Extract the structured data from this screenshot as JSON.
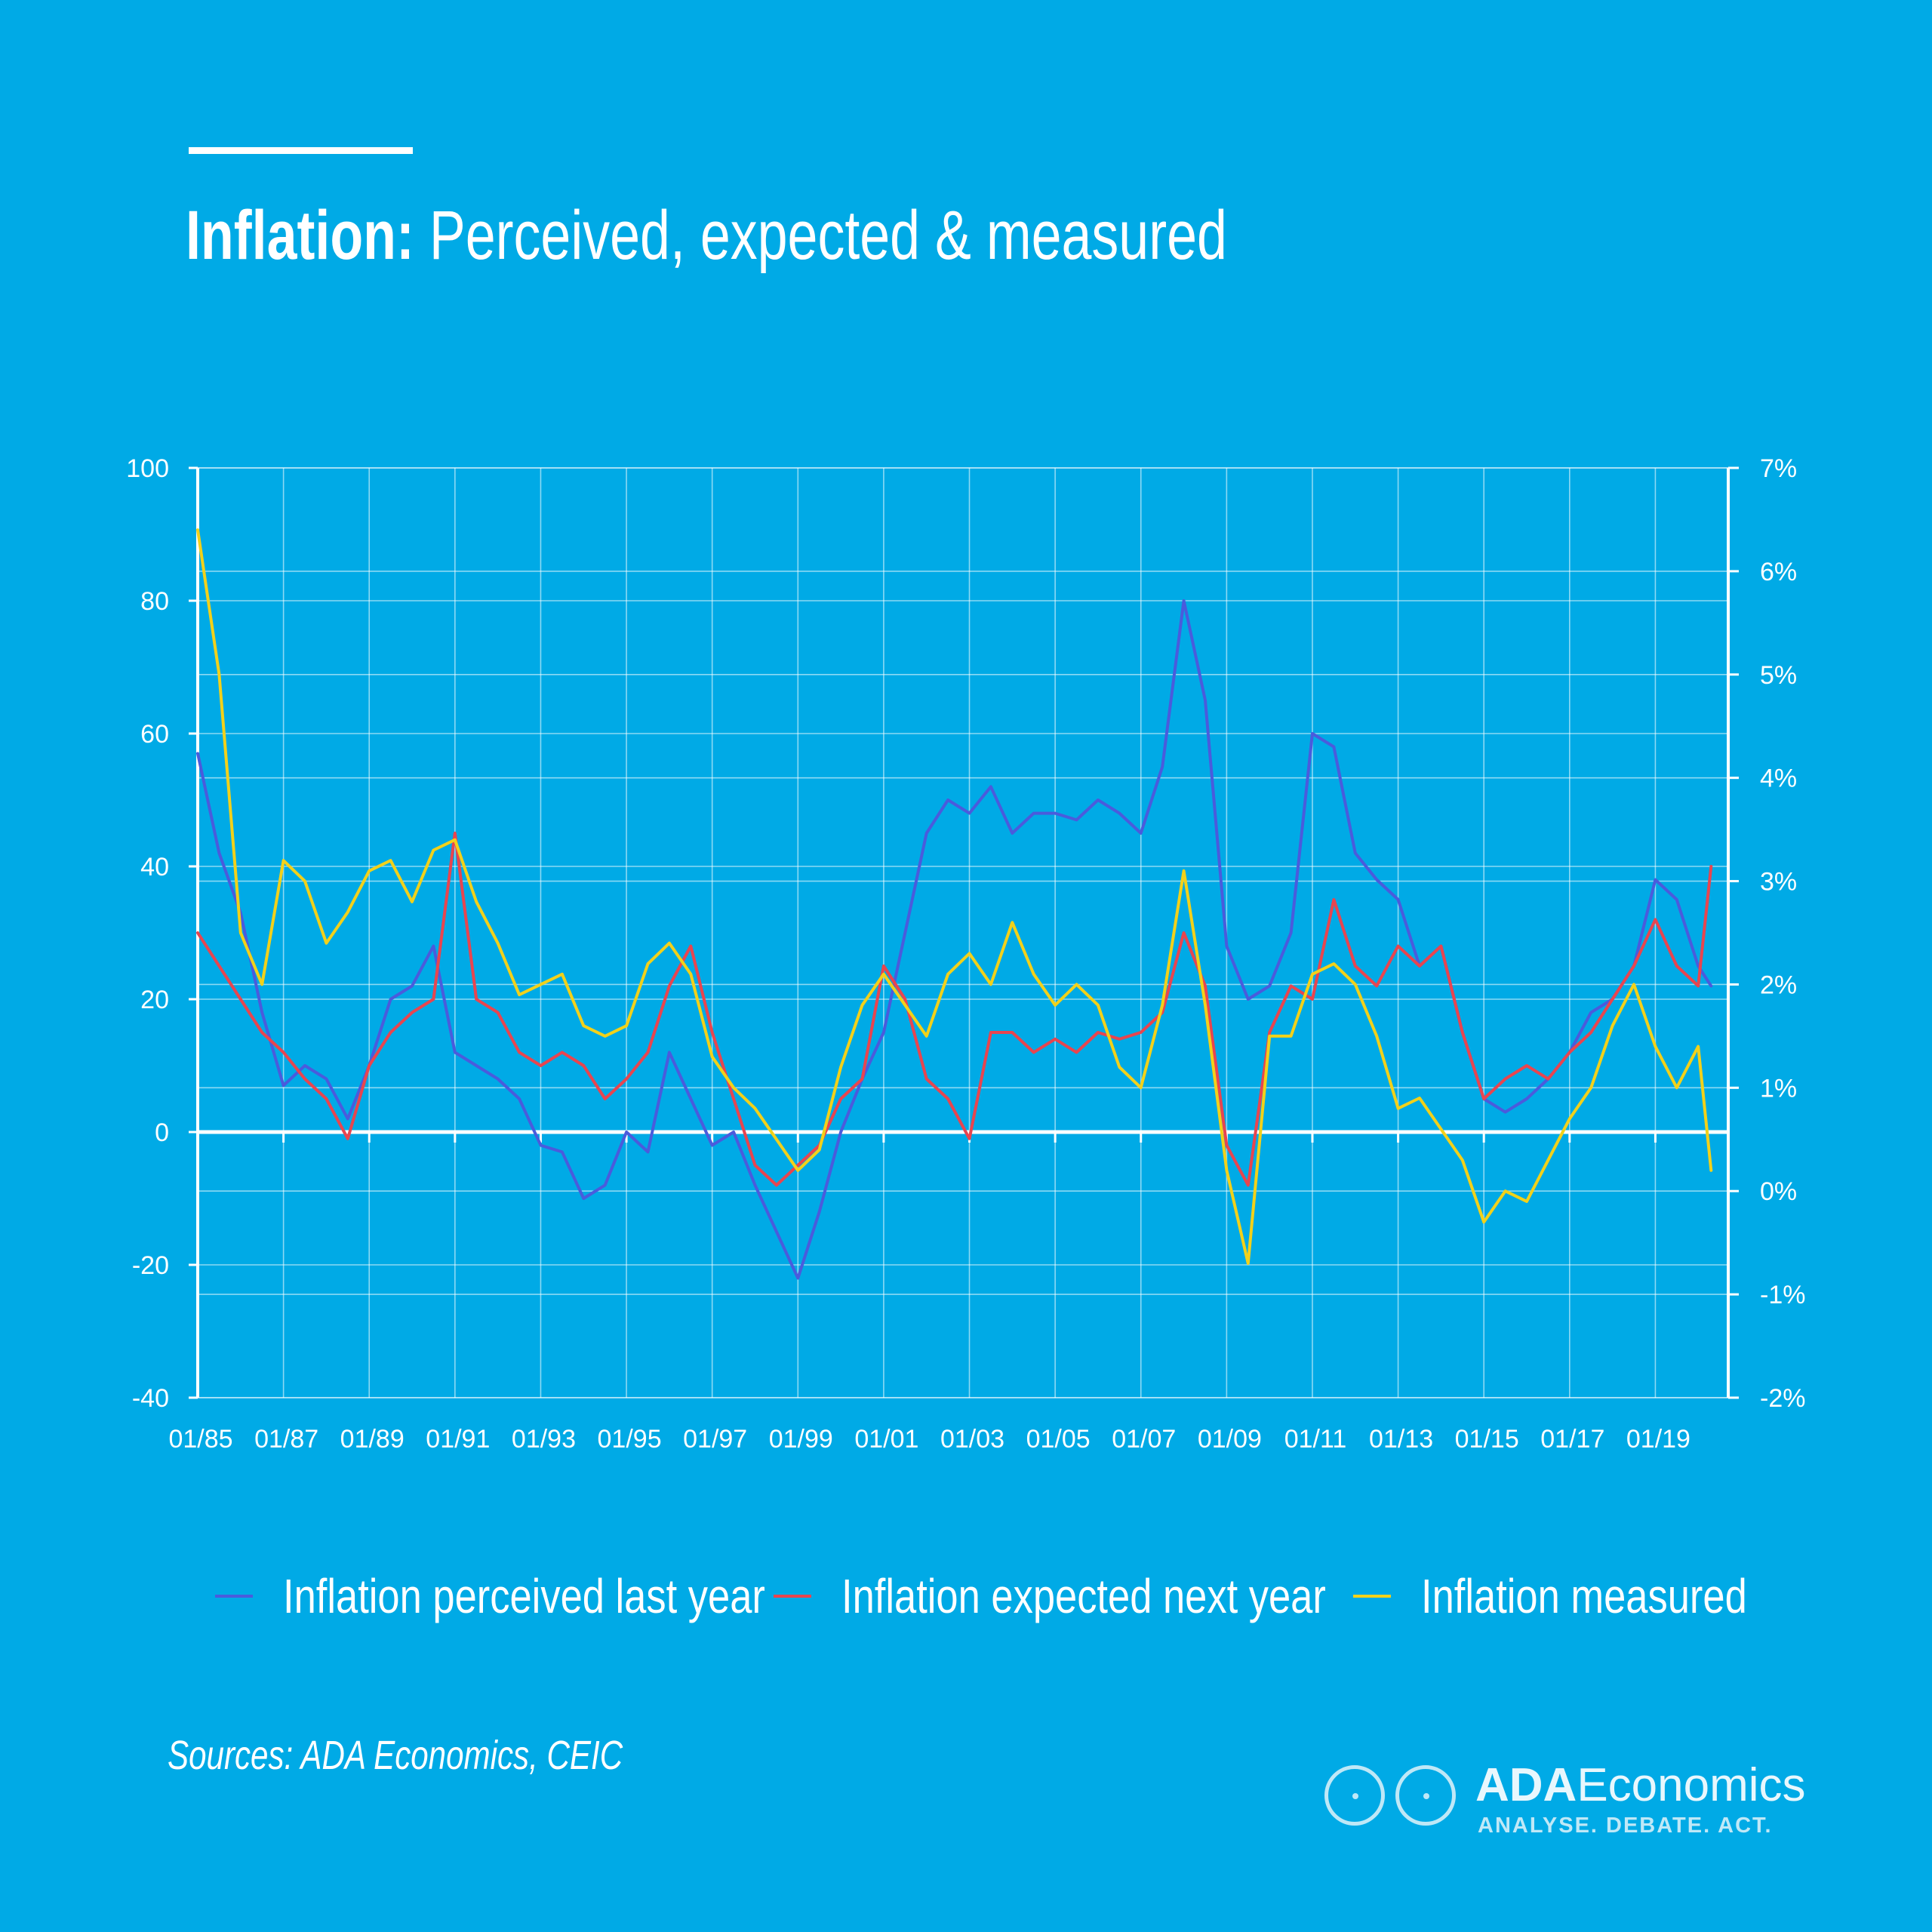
{
  "header": {
    "title_lead": "Inflation:",
    "title_rest": " Perceived, expected & measured"
  },
  "footer": {
    "source": "Sources: ADA Economics, CEIC",
    "logo_name_a": "ADA",
    "logo_name_b": "Economics",
    "logo_tagline": "ANALYSE. DEBATE. ACT."
  },
  "colors": {
    "background": "#00aae6",
    "perceived": "#4a5bdc",
    "expected": "#e8454f",
    "measured": "#f2d11a"
  },
  "chart_data": {
    "type": "line",
    "x_tick_labels": [
      "01/85",
      "01/87",
      "01/89",
      "01/91",
      "01/93",
      "01/95",
      "01/97",
      "01/99",
      "01/01",
      "01/03",
      "01/05",
      "01/07",
      "01/09",
      "01/11",
      "01/13",
      "01/15",
      "01/17",
      "01/19"
    ],
    "x": [
      1985.0,
      1985.5,
      1986.0,
      1986.5,
      1987.0,
      1987.5,
      1988.0,
      1988.5,
      1989.0,
      1989.5,
      1990.0,
      1990.5,
      1991.0,
      1991.5,
      1992.0,
      1992.5,
      1993.0,
      1993.5,
      1994.0,
      1994.5,
      1995.0,
      1995.5,
      1996.0,
      1996.5,
      1997.0,
      1997.5,
      1998.0,
      1998.5,
      1999.0,
      1999.5,
      2000.0,
      2000.5,
      2001.0,
      2001.5,
      2002.0,
      2002.5,
      2003.0,
      2003.5,
      2004.0,
      2004.5,
      2005.0,
      2005.5,
      2006.0,
      2006.5,
      2007.0,
      2007.5,
      2008.0,
      2008.5,
      2009.0,
      2009.5,
      2010.0,
      2010.5,
      2011.0,
      2011.5,
      2012.0,
      2012.5,
      2013.0,
      2013.5,
      2014.0,
      2014.5,
      2015.0,
      2015.5,
      2016.0,
      2016.5,
      2017.0,
      2017.5,
      2018.0,
      2018.5,
      2019.0,
      2019.5,
      2020.0,
      2020.3
    ],
    "y_left_ticks": [
      100,
      80,
      60,
      40,
      20,
      0,
      -20,
      -40
    ],
    "y_left_range": [
      -40,
      100
    ],
    "y_right_ticks": [
      "7%",
      "6%",
      "5%",
      "4%",
      "3%",
      "2%",
      "1%",
      "0%",
      "-1%",
      "-2%"
    ],
    "y_right_range": [
      -2,
      7
    ],
    "series": [
      {
        "name": "Inflation perceived last year",
        "axis": "left",
        "values": [
          57,
          42,
          33,
          18,
          7,
          10,
          8,
          2,
          10,
          20,
          22,
          28,
          12,
          10,
          8,
          5,
          -2,
          -3,
          -10,
          -8,
          0,
          -3,
          12,
          5,
          -2,
          0,
          -8,
          -15,
          -22,
          -12,
          0,
          8,
          15,
          30,
          45,
          50,
          48,
          52,
          45,
          48,
          48,
          47,
          50,
          48,
          45,
          55,
          80,
          65,
          28,
          20,
          22,
          30,
          60,
          58,
          42,
          38,
          35,
          25,
          28,
          15,
          5,
          3,
          5,
          8,
          12,
          18,
          20,
          25,
          38,
          35,
          25,
          22
        ],
        "color_key": "perceived"
      },
      {
        "name": "Inflation expected next year",
        "axis": "left",
        "values": [
          30,
          25,
          20,
          15,
          12,
          8,
          5,
          -1,
          10,
          15,
          18,
          20,
          45,
          20,
          18,
          12,
          10,
          12,
          10,
          5,
          8,
          12,
          22,
          28,
          15,
          5,
          -5,
          -8,
          -5,
          -2,
          5,
          8,
          25,
          20,
          8,
          5,
          -1,
          15,
          15,
          12,
          14,
          12,
          15,
          14,
          15,
          18,
          30,
          22,
          -2,
          -8,
          15,
          22,
          20,
          35,
          25,
          22,
          28,
          25,
          28,
          15,
          5,
          8,
          10,
          8,
          12,
          15,
          20,
          25,
          32,
          25,
          22,
          40
        ],
        "color_key": "expected"
      },
      {
        "name": "Inflation measured",
        "axis": "right",
        "values": [
          6.4,
          5.0,
          2.5,
          2.0,
          3.2,
          3.0,
          2.4,
          2.7,
          3.1,
          3.2,
          2.8,
          3.3,
          3.4,
          2.8,
          2.4,
          1.9,
          2.0,
          2.1,
          1.6,
          1.5,
          1.6,
          2.2,
          2.4,
          2.1,
          1.3,
          1.0,
          0.8,
          0.5,
          0.2,
          0.4,
          1.2,
          1.8,
          2.1,
          1.8,
          1.5,
          2.1,
          2.3,
          2.0,
          2.6,
          2.1,
          1.8,
          2.0,
          1.8,
          1.2,
          1.0,
          1.8,
          3.1,
          1.8,
          0.2,
          -0.7,
          1.5,
          1.5,
          2.1,
          2.2,
          2.0,
          1.5,
          0.8,
          0.9,
          0.6,
          0.3,
          -0.3,
          0.0,
          -0.1,
          0.3,
          0.7,
          1.0,
          1.6,
          2.0,
          1.4,
          1.0,
          1.4,
          0.2
        ],
        "color_key": "measured"
      }
    ],
    "grid": true,
    "legend_position": "bottom"
  }
}
